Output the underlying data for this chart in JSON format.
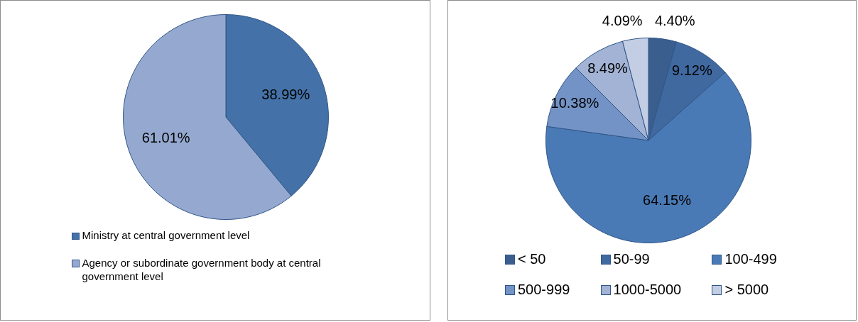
{
  "chart_data": [
    {
      "type": "pie",
      "categories": [
        "Ministry at central government level",
        "Agency or subordinate government body at central government level"
      ],
      "values": [
        38.99,
        61.01
      ],
      "colors": [
        "#4472a8",
        "#95a9d0"
      ],
      "value_labels": [
        "38.99%",
        "61.01%"
      ],
      "legend": "bottom"
    },
    {
      "type": "pie",
      "categories": [
        "< 50",
        "50-99",
        "100-499",
        "500-999",
        "1000-5000",
        "> 5000"
      ],
      "values": [
        4.4,
        9.12,
        64.15,
        10.38,
        8.49,
        4.09
      ],
      "colors": [
        "#3a5f8f",
        "#4069a0",
        "#4a7ab5",
        "#7393c6",
        "#a2b3d5",
        "#c3cde3"
      ],
      "value_labels": [
        "4.40%",
        "9.12%",
        "64.15%",
        "10.38%",
        "8.49%",
        "4.09%"
      ],
      "legend": "bottom"
    }
  ]
}
